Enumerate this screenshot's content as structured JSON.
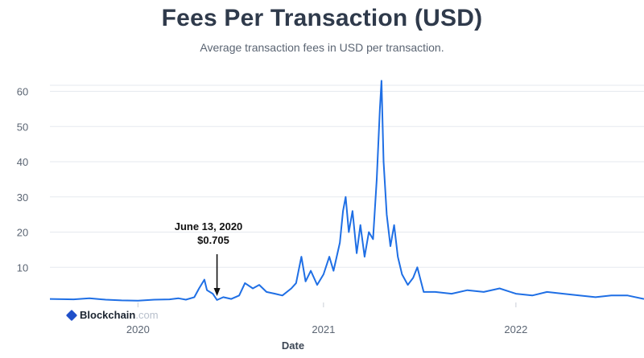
{
  "header": {
    "title": "Fees Per Transaction (USD)",
    "subtitle": "Average transaction fees in USD per transaction."
  },
  "brand": {
    "name": "Blockchain",
    "suffix": ".com",
    "icon": "blockchain-logo-icon"
  },
  "colors": {
    "line": "#1f6fe5",
    "grid": "#e6e9ef",
    "text": "#5b6573",
    "title": "#2f3a4b"
  },
  "chart_data": {
    "type": "line",
    "title": "Fees Per Transaction (USD)",
    "subtitle": "Average transaction fees in USD per transaction.",
    "xlabel": "Date",
    "ylabel": "",
    "ylim": [
      0,
      64
    ],
    "yticks": [
      10,
      20,
      30,
      40,
      50,
      60
    ],
    "xticks": [
      "2020",
      "2021",
      "2022"
    ],
    "grid": true,
    "series": [
      {
        "values_note": "x = date, y = average fee in USD",
        "points": [
          [
            "2019-08-01",
            1.0
          ],
          [
            "2019-09-15",
            0.9
          ],
          [
            "2019-10-15",
            1.2
          ],
          [
            "2019-11-15",
            0.8
          ],
          [
            "2019-12-15",
            0.6
          ],
          [
            "2020-01-15",
            0.5
          ],
          [
            "2020-02-15",
            0.8
          ],
          [
            "2020-03-15",
            0.9
          ],
          [
            "2020-04-01",
            1.2
          ],
          [
            "2020-04-15",
            0.8
          ],
          [
            "2020-05-01",
            1.5
          ],
          [
            "2020-05-10",
            4.0
          ],
          [
            "2020-05-20",
            6.5
          ],
          [
            "2020-05-25",
            3.5
          ],
          [
            "2020-06-05",
            2.5
          ],
          [
            "2020-06-13",
            0.7
          ],
          [
            "2020-06-25",
            1.5
          ],
          [
            "2020-07-10",
            1.0
          ],
          [
            "2020-07-25",
            2.0
          ],
          [
            "2020-08-05",
            5.5
          ],
          [
            "2020-08-20",
            4.0
          ],
          [
            "2020-09-01",
            5.0
          ],
          [
            "2020-09-15",
            3.0
          ],
          [
            "2020-10-01",
            2.5
          ],
          [
            "2020-10-15",
            2.0
          ],
          [
            "2020-11-01",
            4.0
          ],
          [
            "2020-11-10",
            5.5
          ],
          [
            "2020-11-20",
            13.0
          ],
          [
            "2020-11-28",
            6.0
          ],
          [
            "2020-12-08",
            9.0
          ],
          [
            "2020-12-20",
            5.0
          ],
          [
            "2021-01-01",
            8.0
          ],
          [
            "2021-01-12",
            13.0
          ],
          [
            "2021-01-20",
            9.0
          ],
          [
            "2021-02-01",
            17.0
          ],
          [
            "2021-02-07",
            26.0
          ],
          [
            "2021-02-12",
            30.0
          ],
          [
            "2021-02-18",
            20.0
          ],
          [
            "2021-02-25",
            26.0
          ],
          [
            "2021-03-05",
            14.0
          ],
          [
            "2021-03-12",
            22.0
          ],
          [
            "2021-03-20",
            13.0
          ],
          [
            "2021-03-28",
            20.0
          ],
          [
            "2021-04-05",
            18.0
          ],
          [
            "2021-04-12",
            35.0
          ],
          [
            "2021-04-18",
            55.0
          ],
          [
            "2021-04-21",
            63.0
          ],
          [
            "2021-04-25",
            40.0
          ],
          [
            "2021-05-01",
            25.0
          ],
          [
            "2021-05-08",
            16.0
          ],
          [
            "2021-05-15",
            22.0
          ],
          [
            "2021-05-22",
            13.0
          ],
          [
            "2021-05-30",
            8.0
          ],
          [
            "2021-06-10",
            5.0
          ],
          [
            "2021-06-20",
            7.0
          ],
          [
            "2021-06-28",
            10.0
          ],
          [
            "2021-07-10",
            3.0
          ],
          [
            "2021-08-01",
            3.0
          ],
          [
            "2021-09-01",
            2.5
          ],
          [
            "2021-10-01",
            3.5
          ],
          [
            "2021-11-01",
            3.0
          ],
          [
            "2021-12-01",
            4.0
          ],
          [
            "2022-01-01",
            2.5
          ],
          [
            "2022-02-01",
            2.0
          ],
          [
            "2022-03-01",
            3.0
          ],
          [
            "2022-04-01",
            2.5
          ],
          [
            "2022-05-01",
            2.0
          ],
          [
            "2022-06-01",
            1.5
          ],
          [
            "2022-07-01",
            2.0
          ],
          [
            "2022-08-01",
            2.0
          ],
          [
            "2022-09-01",
            1.0
          ]
        ]
      }
    ],
    "annotations": [
      {
        "date": "2020-06-13",
        "label_line1": "June 13, 2020",
        "label_line2": "$0.705",
        "value": 0.705,
        "arrow": true
      }
    ]
  }
}
